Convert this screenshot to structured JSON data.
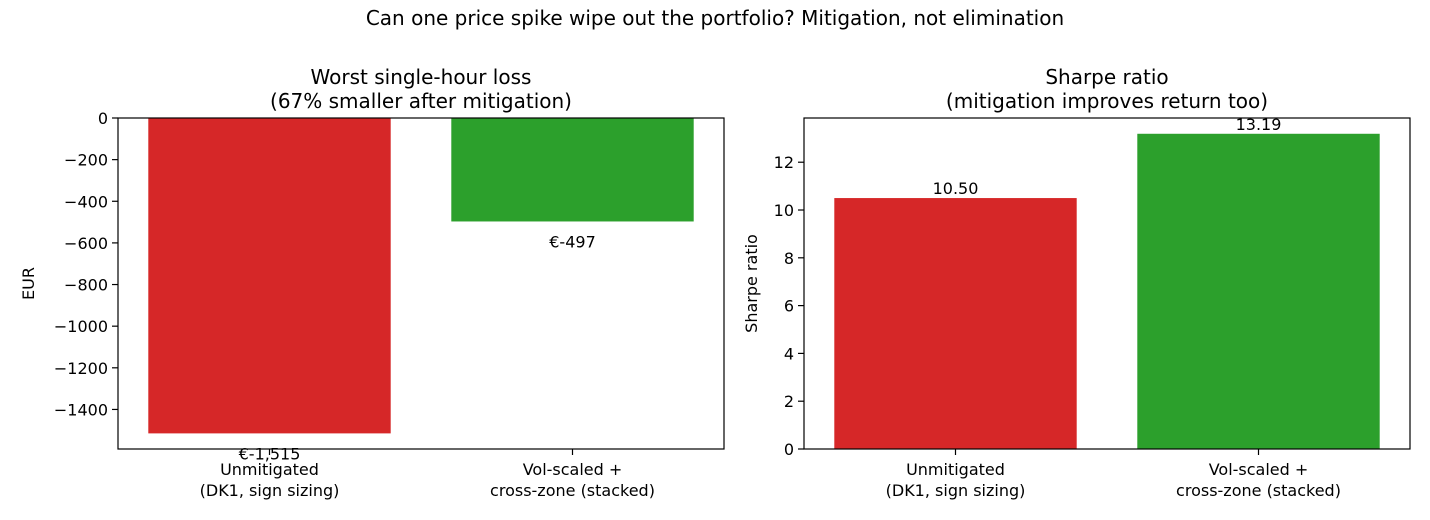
{
  "suptitle": "Can one price spike wipe out the portfolio? Mitigation, not elimination",
  "colors": {
    "unmitigated": "#d62728",
    "mitigated": "#2ca02c"
  },
  "chart_data": [
    {
      "type": "bar",
      "title": "Worst single-hour loss\n(67% smaller after mitigation)",
      "xlabel": "",
      "ylabel": "EUR",
      "categories": [
        "Unmitigated\n(DK1, sign sizing)",
        "Vol-scaled +\ncross-zone (stacked)"
      ],
      "values": [
        -1515,
        -497
      ],
      "data_labels": [
        "€-1,515",
        "€-497"
      ],
      "bar_colors": [
        "#d62728",
        "#2ca02c"
      ],
      "ylim": [
        -1590,
        0
      ],
      "yticks": [
        0,
        -200,
        -400,
        -600,
        -800,
        -1000,
        -1200,
        -1400
      ],
      "ytick_labels": [
        "0",
        "−200",
        "−400",
        "−600",
        "−800",
        "−1000",
        "−1200",
        "−1400"
      ],
      "grid": false,
      "legend": "none"
    },
    {
      "type": "bar",
      "title": "Sharpe ratio\n(mitigation improves return too)",
      "xlabel": "",
      "ylabel": "Sharpe ratio",
      "categories": [
        "Unmitigated\n(DK1, sign sizing)",
        "Vol-scaled +\ncross-zone (stacked)"
      ],
      "values": [
        10.5,
        13.19
      ],
      "data_labels": [
        "10.50",
        "13.19"
      ],
      "bar_colors": [
        "#d62728",
        "#2ca02c"
      ],
      "ylim": [
        0,
        13.85
      ],
      "yticks": [
        0,
        2,
        4,
        6,
        8,
        10,
        12
      ],
      "ytick_labels": [
        "0",
        "2",
        "4",
        "6",
        "8",
        "10",
        "12"
      ],
      "grid": false,
      "legend": "none"
    }
  ]
}
